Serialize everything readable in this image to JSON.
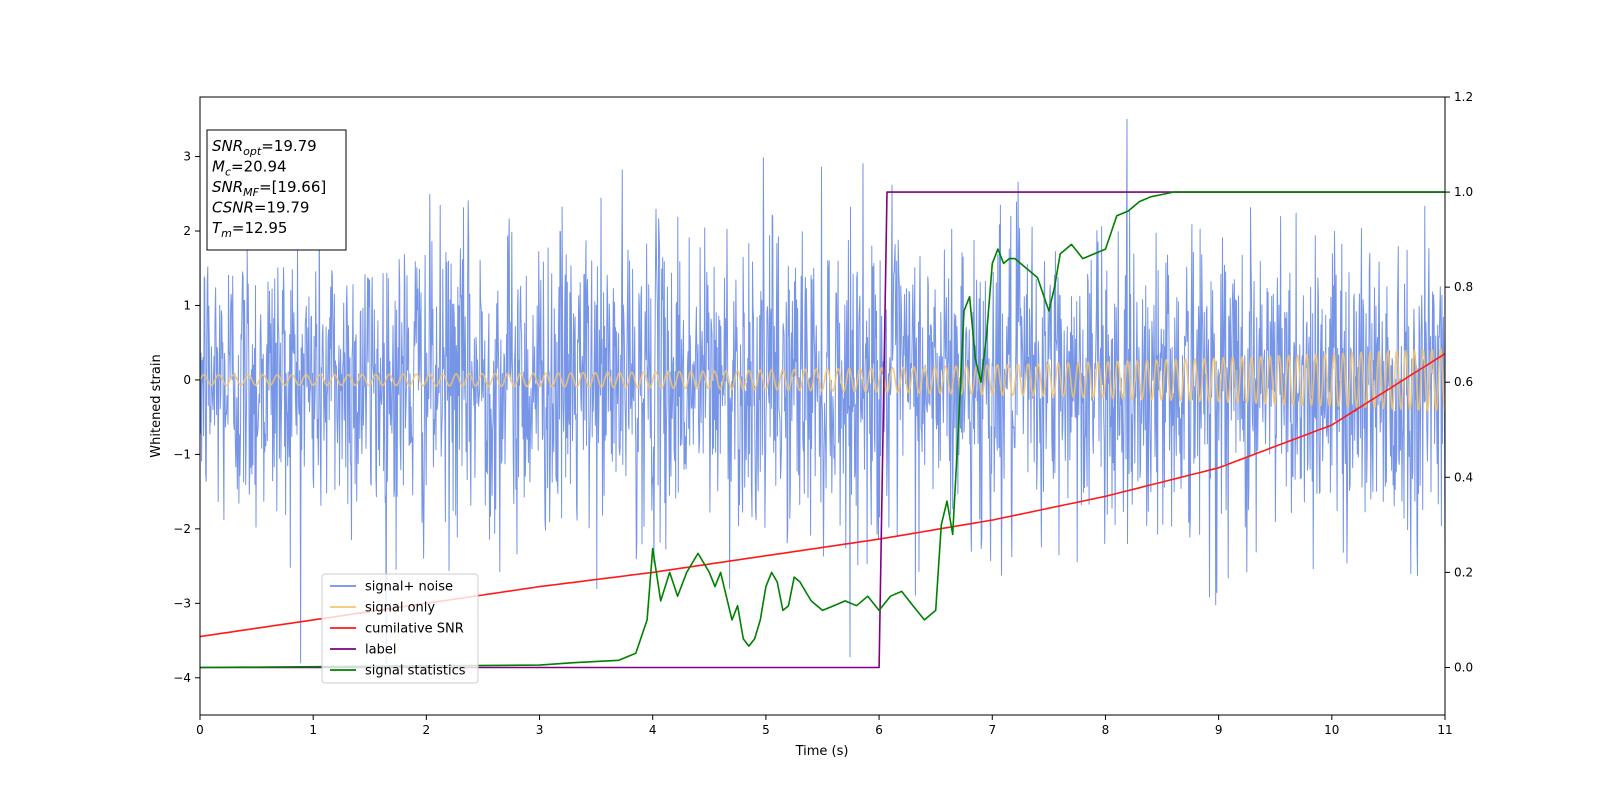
{
  "chart_data": {
    "type": "line",
    "xlabel": "Time (s)",
    "ylabel": "Whitened strain",
    "xlim": [
      0,
      11
    ],
    "ylim_left": [
      -4.5,
      3.8
    ],
    "ylim_right": [
      -0.1,
      1.2
    ],
    "xticks": [
      0,
      1,
      2,
      3,
      4,
      5,
      6,
      7,
      8,
      9,
      10,
      11
    ],
    "yticks_left": [
      -4,
      -3,
      -2,
      -1,
      0,
      1,
      2,
      3
    ],
    "yticks_right": [
      0.0,
      0.2,
      0.4,
      0.6,
      0.8,
      1.0,
      1.2
    ],
    "legend_position": "lower-left",
    "series": [
      {
        "name": "signal+ noise",
        "axis": "left",
        "color": "#6f8fe6",
        "kind": "noise",
        "amplitude_std": 1.0
      },
      {
        "name": "signal only",
        "axis": "left",
        "color": "#f5c46e",
        "kind": "chirp",
        "amp_start": 0.07,
        "amp_end": 0.42,
        "cycles_per_sec_start": 7.5,
        "cycles_per_sec_end": 13
      },
      {
        "name": "cumilative SNR",
        "axis": "right",
        "color": "#ff1a1a",
        "x": [
          0,
          1,
          2,
          3,
          4,
          5,
          6,
          7,
          8,
          9,
          10,
          11
        ],
        "y": [
          0.065,
          0.1,
          0.135,
          0.17,
          0.2,
          0.235,
          0.27,
          0.31,
          0.36,
          0.42,
          0.51,
          0.66
        ]
      },
      {
        "name": "label",
        "axis": "right",
        "color": "#800080",
        "x": [
          0,
          6.0,
          6.07,
          11
        ],
        "y": [
          0.0,
          0.0,
          1.0,
          1.0
        ]
      },
      {
        "name": "signal statistics",
        "axis": "right",
        "color": "#008000",
        "x": [
          0,
          3.0,
          3.3,
          3.7,
          3.85,
          3.95,
          4.0,
          4.07,
          4.15,
          4.22,
          4.3,
          4.4,
          4.45,
          4.5,
          4.55,
          4.6,
          4.65,
          4.7,
          4.75,
          4.8,
          4.85,
          4.9,
          4.95,
          5.0,
          5.05,
          5.1,
          5.15,
          5.2,
          5.25,
          5.3,
          5.35,
          5.4,
          5.5,
          5.6,
          5.7,
          5.8,
          5.9,
          6.0,
          6.1,
          6.2,
          6.3,
          6.4,
          6.5,
          6.55,
          6.6,
          6.65,
          6.7,
          6.75,
          6.8,
          6.85,
          6.9,
          6.95,
          7.0,
          7.05,
          7.1,
          7.15,
          7.2,
          7.3,
          7.4,
          7.5,
          7.55,
          7.6,
          7.7,
          7.8,
          7.9,
          8.0,
          8.1,
          8.2,
          8.3,
          8.4,
          8.5,
          8.6,
          8.8,
          9.0,
          9.5,
          10.0,
          10.5,
          11.0
        ],
        "y": [
          0.0,
          0.005,
          0.01,
          0.015,
          0.03,
          0.1,
          0.25,
          0.14,
          0.2,
          0.15,
          0.2,
          0.24,
          0.22,
          0.2,
          0.17,
          0.2,
          0.15,
          0.1,
          0.13,
          0.06,
          0.045,
          0.06,
          0.1,
          0.17,
          0.2,
          0.18,
          0.12,
          0.13,
          0.19,
          0.18,
          0.16,
          0.14,
          0.12,
          0.13,
          0.14,
          0.13,
          0.15,
          0.12,
          0.15,
          0.16,
          0.13,
          0.1,
          0.12,
          0.3,
          0.35,
          0.28,
          0.5,
          0.75,
          0.78,
          0.65,
          0.6,
          0.7,
          0.85,
          0.88,
          0.85,
          0.86,
          0.86,
          0.84,
          0.82,
          0.75,
          0.8,
          0.87,
          0.89,
          0.86,
          0.87,
          0.88,
          0.95,
          0.96,
          0.98,
          0.99,
          0.995,
          1.0,
          1.0,
          1.0,
          1.0,
          1.0,
          1.0,
          1.0
        ]
      }
    ],
    "stats_box": [
      {
        "base": "SNR",
        "sub": "opt",
        "value": "=19.79"
      },
      {
        "base": "M",
        "sub": "c",
        "value": "=20.94"
      },
      {
        "base": "SNR",
        "sub": "MF",
        "value": "=[19.66]"
      },
      {
        "base": "CSNR",
        "sub": "",
        "value": "=19.79"
      },
      {
        "base": "T",
        "sub": "m",
        "value": "=12.95"
      }
    ]
  }
}
